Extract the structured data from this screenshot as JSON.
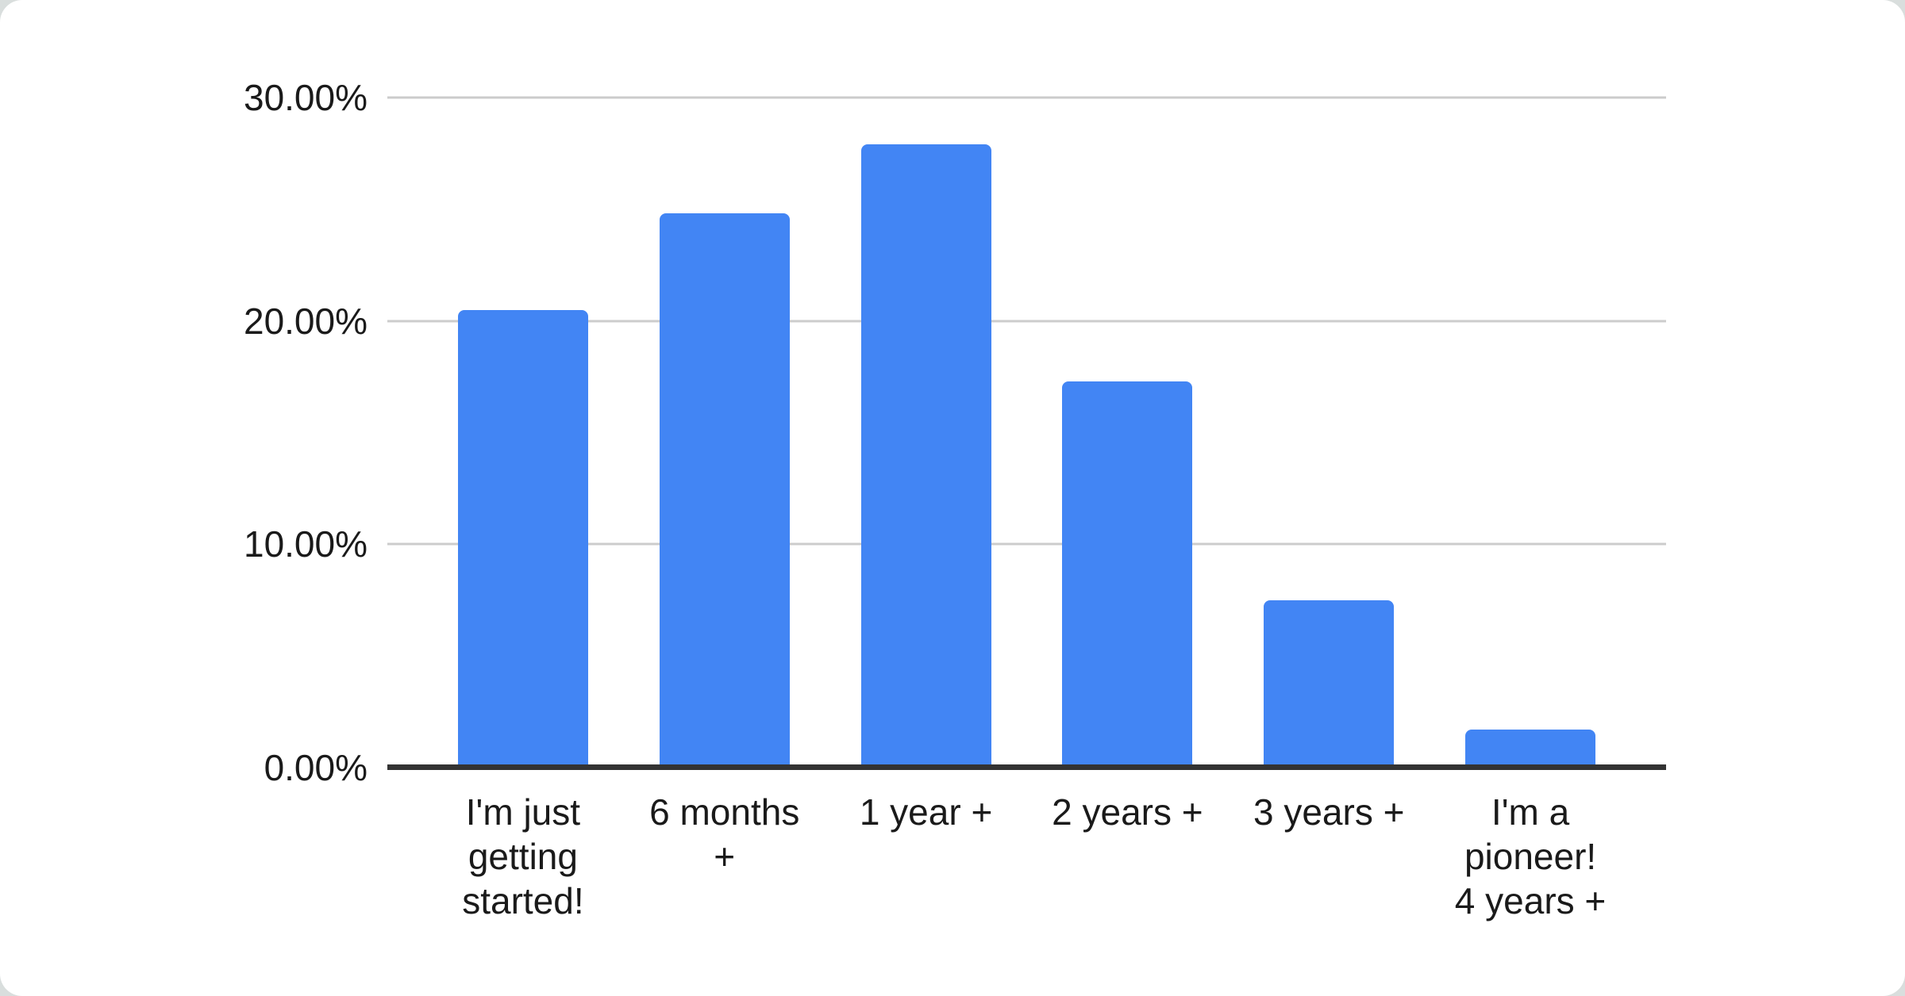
{
  "chart_data": {
    "type": "bar",
    "title": "",
    "xlabel": "",
    "ylabel": "",
    "categories": [
      "I'm just getting started!",
      "6 months +",
      "1 year +",
      "2 years +",
      "3 years +",
      "I'm a pioneer! 4 years +"
    ],
    "categories_wrapped": [
      "I'm just\ngetting\nstarted!",
      "6 months\n+",
      "1 year +",
      "2 years +",
      "3 years +",
      "I'm a\npioneer!\n4 years +"
    ],
    "values": [
      20.5,
      24.8,
      27.9,
      17.3,
      7.5,
      1.7
    ],
    "unit": "%",
    "ylim": [
      0,
      30
    ],
    "ytick_step": 10,
    "yticks": [
      "30.00%",
      "20.00%",
      "10.00%",
      "0.00%"
    ],
    "grid": true,
    "legend": false,
    "bar_color": "#4285F4",
    "gridline_color": "#cccccc",
    "axis_line_color": "#333333",
    "label_color": "#1a1a1a",
    "card_background": "#ffffff",
    "frame_background": "#d9dedd"
  }
}
